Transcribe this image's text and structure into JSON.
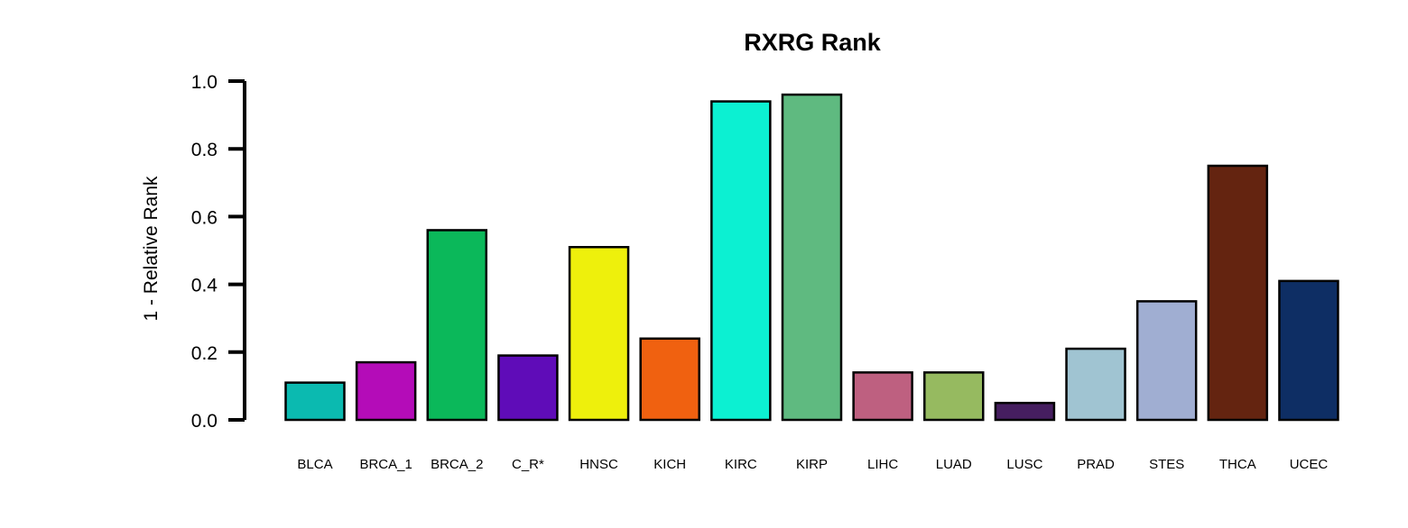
{
  "chart_data": {
    "type": "bar",
    "title": "RXRG Rank",
    "xlabel": "",
    "ylabel": "1 - Relative Rank",
    "ylim": [
      0,
      1.0
    ],
    "yticks": [
      "0.0",
      "0.2",
      "0.4",
      "0.6",
      "0.8",
      "1.0"
    ],
    "grid": false,
    "legend": "none",
    "categories": [
      "BLCA",
      "BRCA_1",
      "BRCA_2",
      "C_R*",
      "HNSC",
      "KICH",
      "KIRC",
      "KIRP",
      "LIHC",
      "LUAD",
      "LUSC",
      "PRAD",
      "STES",
      "THCA",
      "UCEC"
    ],
    "values": [
      0.11,
      0.17,
      0.56,
      0.19,
      0.51,
      0.24,
      0.94,
      0.96,
      0.14,
      0.14,
      0.05,
      0.21,
      0.35,
      0.75,
      0.41
    ],
    "colors": [
      "#0bbab0",
      "#b40cb8",
      "#0bb85a",
      "#5f0cb8",
      "#eef00c",
      "#f06110",
      "#0cf0d2",
      "#5fba80",
      "#be6080",
      "#96ba60",
      "#461e60",
      "#a0c4d2",
      "#a0aed2",
      "#642410",
      "#0e2e64"
    ]
  }
}
